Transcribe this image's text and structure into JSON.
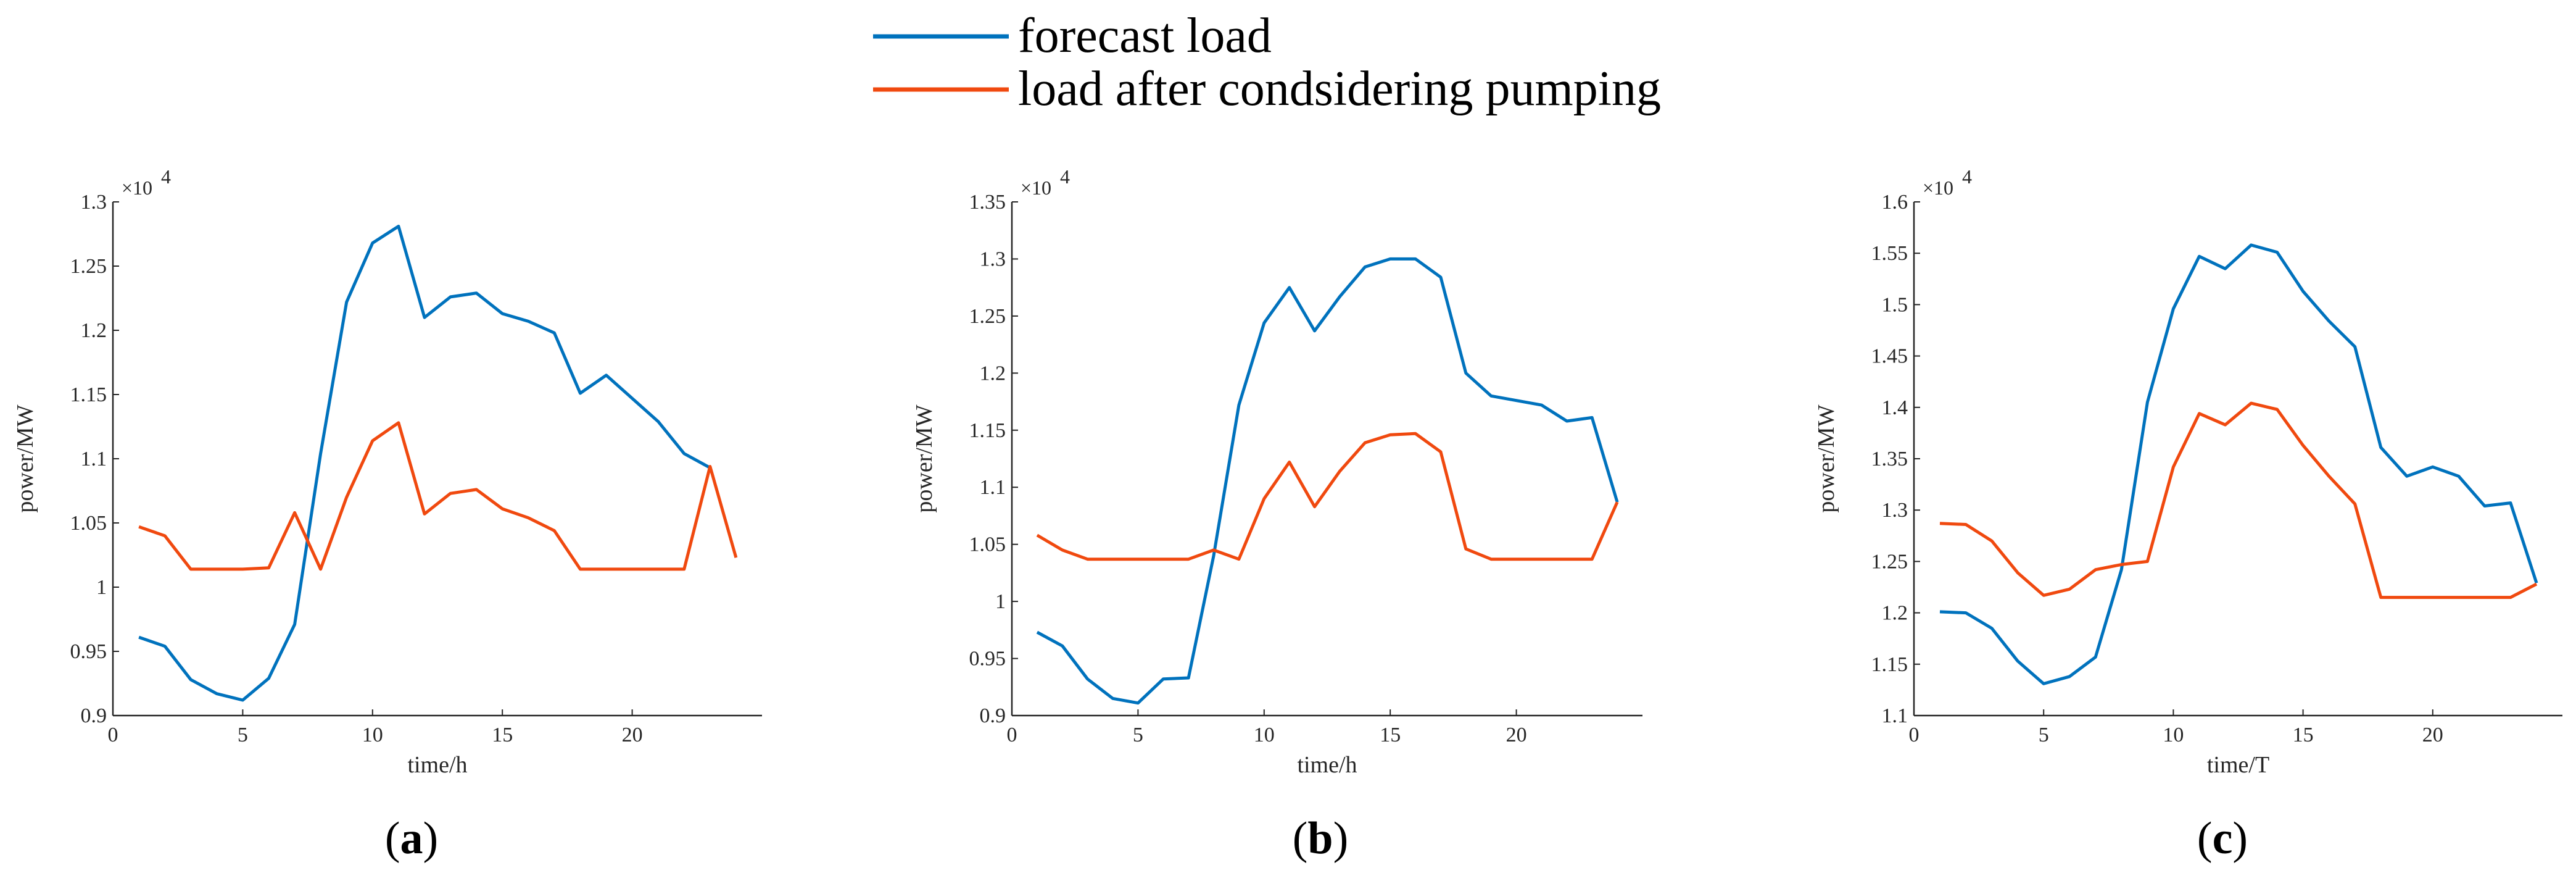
{
  "colors": {
    "forecast": "#0072BD",
    "after": "#F0490F",
    "axis": "#262626"
  },
  "legend": {
    "forecast": "forecast load",
    "after": "load after condsidering pumping"
  },
  "chart_data": [
    {
      "type": "line",
      "panel": "a",
      "caption_open": "(",
      "caption_letter": "a",
      "caption_close": ")",
      "xlabel": "time/h",
      "ylabel": "power/MW",
      "exponent_base": "×10",
      "exponent_power": "4",
      "xlim": [
        0,
        25
      ],
      "ylim": [
        0.9,
        1.3
      ],
      "xticks": [
        0,
        5,
        10,
        15,
        20
      ],
      "xtick_labels": [
        "0",
        "5",
        "10",
        "15",
        "20"
      ],
      "yticks": [
        0.9,
        0.95,
        1.0,
        1.05,
        1.1,
        1.15,
        1.2,
        1.25,
        1.3
      ],
      "ytick_labels": [
        "0.9",
        "0.95",
        "1",
        "1.05",
        "1.1",
        "1.15",
        "1.2",
        "1.25",
        "1.3"
      ],
      "x": [
        1,
        2,
        3,
        4,
        5,
        6,
        7,
        8,
        9,
        10,
        11,
        12,
        13,
        14,
        15,
        16,
        17,
        18,
        19,
        20,
        21,
        22,
        23,
        24
      ],
      "series": [
        {
          "name": "forecast load",
          "key": "forecast",
          "values": [
            0.961,
            0.954,
            0.928,
            0.917,
            0.912,
            0.929,
            0.971,
            1.104,
            1.222,
            1.268,
            1.281,
            1.21,
            1.226,
            1.229,
            1.213,
            1.207,
            1.198,
            1.151,
            1.165,
            1.147,
            1.129,
            1.104,
            1.093,
            null
          ]
        },
        {
          "name": "load after condsidering pumping",
          "key": "after",
          "values": [
            1.047,
            1.04,
            1.014,
            1.014,
            1.014,
            1.015,
            1.058,
            1.014,
            1.07,
            1.114,
            1.128,
            1.057,
            1.073,
            1.076,
            1.061,
            1.054,
            1.044,
            1.014,
            1.014,
            1.014,
            1.014,
            1.014,
            1.094,
            1.023
          ]
        }
      ]
    },
    {
      "type": "line",
      "panel": "b",
      "caption_open": "(",
      "caption_letter": "b",
      "caption_close": ")",
      "xlabel": "time/h",
      "ylabel": "power/MW",
      "exponent_base": "×10",
      "exponent_power": "4",
      "xlim": [
        0,
        25
      ],
      "ylim": [
        0.9,
        1.35
      ],
      "xticks": [
        0,
        5,
        10,
        15,
        20
      ],
      "xtick_labels": [
        "0",
        "5",
        "10",
        "15",
        "20"
      ],
      "yticks": [
        0.9,
        0.95,
        1.0,
        1.05,
        1.1,
        1.15,
        1.2,
        1.25,
        1.3,
        1.35
      ],
      "ytick_labels": [
        "0.9",
        "0.95",
        "1",
        "1.05",
        "1.1",
        "1.15",
        "1.2",
        "1.25",
        "1.3",
        "1.35"
      ],
      "x": [
        1,
        2,
        3,
        4,
        5,
        6,
        7,
        8,
        9,
        10,
        11,
        12,
        13,
        14,
        15,
        16,
        17,
        18,
        19,
        20,
        21,
        22,
        23,
        24
      ],
      "series": [
        {
          "name": "forecast load",
          "key": "forecast",
          "values": [
            0.973,
            0.961,
            0.932,
            0.915,
            0.911,
            0.932,
            0.933,
            1.04,
            1.172,
            1.244,
            1.275,
            1.237,
            1.267,
            1.293,
            1.3,
            1.3,
            1.284,
            1.2,
            1.18,
            1.176,
            1.172,
            1.158,
            1.161,
            1.087
          ]
        },
        {
          "name": "load after condsidering pumping",
          "key": "after",
          "values": [
            1.058,
            1.045,
            1.037,
            1.037,
            1.037,
            1.037,
            1.037,
            1.045,
            1.037,
            1.09,
            1.122,
            1.083,
            1.114,
            1.139,
            1.146,
            1.147,
            1.131,
            1.046,
            1.037,
            1.037,
            1.037,
            1.037,
            1.037,
            1.087
          ]
        }
      ]
    },
    {
      "type": "line",
      "panel": "c",
      "caption_open": "(",
      "caption_letter": "c",
      "caption_close": ")",
      "xlabel": "time/T",
      "ylabel": "power/MW",
      "exponent_base": "×10",
      "exponent_power": "4",
      "xlim": [
        0,
        25
      ],
      "ylim": [
        1.1,
        1.6
      ],
      "xticks": [
        0,
        5,
        10,
        15,
        20
      ],
      "xtick_labels": [
        "0",
        "5",
        "10",
        "15",
        "20"
      ],
      "yticks": [
        1.1,
        1.15,
        1.2,
        1.25,
        1.3,
        1.35,
        1.4,
        1.45,
        1.5,
        1.55,
        1.6
      ],
      "ytick_labels": [
        "1.1",
        "1.15",
        "1.2",
        "1.25",
        "1.3",
        "1.35",
        "1.4",
        "1.45",
        "1.5",
        "1.55",
        "1.6"
      ],
      "x": [
        1,
        2,
        3,
        4,
        5,
        6,
        7,
        8,
        9,
        10,
        11,
        12,
        13,
        14,
        15,
        16,
        17,
        18,
        19,
        20,
        21,
        22,
        23,
        24
      ],
      "series": [
        {
          "name": "forecast load",
          "key": "forecast",
          "values": [
            1.201,
            1.2,
            1.185,
            1.153,
            1.131,
            1.138,
            1.157,
            1.242,
            1.405,
            1.496,
            1.547,
            1.535,
            1.558,
            1.551,
            1.513,
            1.484,
            1.459,
            1.361,
            1.333,
            1.342,
            1.333,
            1.304,
            1.307,
            1.229
          ]
        },
        {
          "name": "load after condsidering pumping",
          "key": "after",
          "values": [
            1.287,
            1.286,
            1.27,
            1.239,
            1.217,
            1.223,
            1.242,
            1.247,
            1.25,
            1.342,
            1.394,
            1.383,
            1.404,
            1.398,
            1.363,
            1.333,
            1.306,
            1.215,
            1.215,
            1.215,
            1.215,
            1.215,
            1.215,
            1.228
          ]
        }
      ]
    }
  ]
}
